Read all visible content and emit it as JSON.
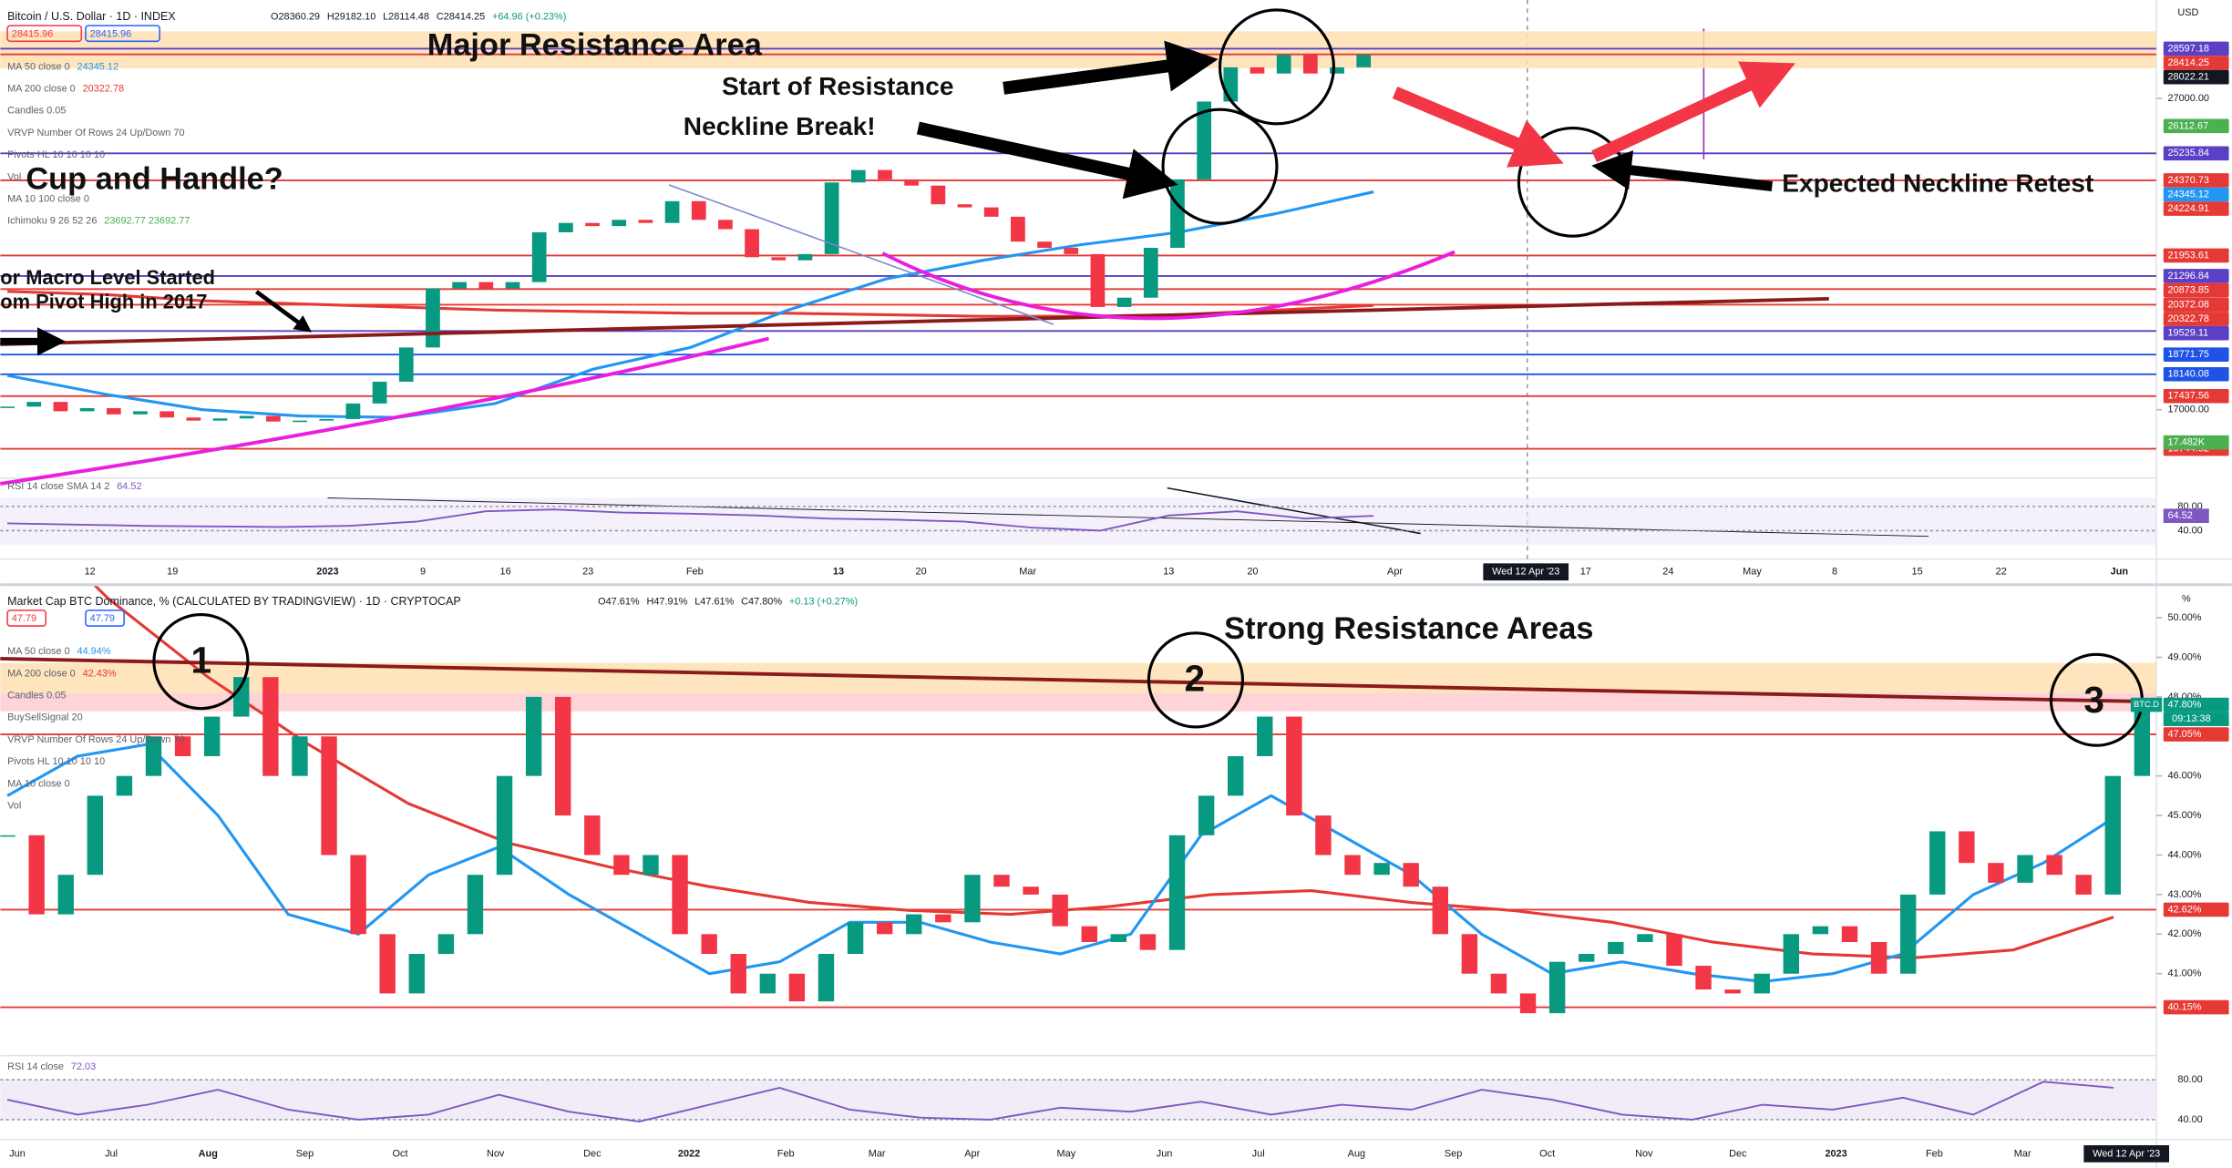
{
  "top": {
    "title": "Bitcoin / U.S. Dollar · 1D · INDEX",
    "ohlc": [
      "O28360.29",
      "H29182.10",
      "L28114.48",
      "C28414.25",
      "+64.96 (+0.23%)"
    ],
    "price_boxes": [
      "28415.96",
      "28415.96"
    ],
    "currency": "USD",
    "indicators": [
      {
        "name": "MA 50 close 0",
        "value": "24345.12"
      },
      {
        "name": "MA 200 close 0",
        "value": "20322.78"
      },
      {
        "name": "Candles 0.05"
      },
      {
        "name": "VRVP Number Of Rows 24 Up/Down 70"
      },
      {
        "name": "Pivots HL 10 10 10 10"
      },
      {
        "name": "Vol"
      },
      {
        "name": "MA 10 100 close 0"
      },
      {
        "name": "Ichimoku 9 26 52 26",
        "value": "23692.77 23692.77"
      }
    ],
    "ylim": [
      15080,
      29797
    ],
    "yticks": [
      {
        "value": 27000,
        "label": "27000.00"
      },
      {
        "value": 17000,
        "label": "17000.00"
      }
    ],
    "closes": [
      17100,
      17250,
      16950,
      17050,
      16850,
      16950,
      16750,
      16650,
      16720,
      16800,
      16620,
      16650,
      16700,
      17200,
      17900,
      19000,
      20900,
      21100,
      20900,
      21100,
      22700,
      23000,
      22900,
      23100,
      23000,
      23700,
      23100,
      22800,
      21900,
      21800,
      22000,
      24300,
      24700,
      24400,
      24200,
      23600,
      23500,
      23200,
      22400,
      22200,
      22000,
      20300,
      20600,
      22200,
      24400,
      26900,
      28000,
      27800,
      28400,
      27800,
      28000,
      28400
    ],
    "ma50": [
      18100,
      17500,
      17000,
      16800,
      16750,
      17200,
      18300,
      19000,
      20200,
      21200,
      21800,
      22300,
      22700,
      23300,
      24000
    ],
    "ma200": [
      20800,
      20700,
      20500,
      20400,
      20300,
      20200,
      20150,
      20100,
      20100,
      20050,
      20000,
      20000,
      20050,
      20200,
      20350
    ],
    "price_labels": [
      {
        "value": 28597.18,
        "color": "#5b3fc4",
        "level": true
      },
      {
        "value": 28414.25,
        "color": "#e53935",
        "level": true
      },
      {
        "value": 28022.21,
        "color": "#131722",
        "level": false
      },
      {
        "value": 26112.67,
        "color": "#4caf50",
        "level": false
      },
      {
        "value": 25235.84,
        "color": "#5b3fc4",
        "level": true
      },
      {
        "value": 24370.73,
        "color": "#e53935",
        "level": true
      },
      {
        "value": 24345.12,
        "color": "#2196f3",
        "level": false
      },
      {
        "value": 24224.91,
        "color": "#e53935",
        "level": false
      },
      {
        "value": 21953.61,
        "color": "#e53935",
        "level": true
      },
      {
        "value": 21296.84,
        "color": "#5b3fc4",
        "level": true
      },
      {
        "value": 20873.85,
        "color": "#e53935",
        "level": true
      },
      {
        "value": 20372.08,
        "color": "#e53935",
        "level": true
      },
      {
        "value": 20322.78,
        "color": "#e53935",
        "level": false
      },
      {
        "value": 19529.11,
        "color": "#5b3fc4",
        "level": true
      },
      {
        "value": 18771.75,
        "color": "#1e53e5",
        "level": true
      },
      {
        "value": 18140.08,
        "color": "#1e53e5",
        "level": true
      },
      {
        "value": 17437.56,
        "color": "#e53935",
        "level": true
      },
      {
        "value": 15744.92,
        "color": "#e53935",
        "level": true
      }
    ],
    "volume_label": "17.482K",
    "x_labels": [
      "12",
      "19",
      "2023",
      "9",
      "16",
      "23",
      "Feb",
      "13",
      "20",
      "Mar",
      "13",
      "20",
      "Apr",
      "17",
      "24",
      "May",
      "8",
      "15",
      "22",
      "Jun"
    ],
    "date_badge": "Wed 12 Apr '23",
    "rsi": {
      "name": "RSI 14 close SMA 14 2",
      "value": 64.52,
      "ylim": [
        20,
        100
      ],
      "yticks": [
        {
          "value": 80,
          "label": "80.00"
        },
        {
          "value": 40,
          "label": "40.00"
        }
      ],
      "values": [
        52,
        50,
        48,
        47,
        46,
        48,
        55,
        72,
        75,
        70,
        68,
        65,
        60,
        58,
        55,
        45,
        40,
        65,
        72,
        60,
        64.52
      ]
    }
  },
  "annotations": {
    "major_resistance": "Major Resistance Area",
    "start_resistance": "Start of Resistance",
    "neckline_break": "Neckline Break!",
    "cup_handle": "Cup and Handle?",
    "expected_retest": "Expected Neckline Retest",
    "macro_1": "or Macro Level Started",
    "macro_2": "om Pivot High in 2017",
    "strong_resistance": "Strong Resistance Areas",
    "n1": "1",
    "n2": "2",
    "n3": "3"
  },
  "bottom": {
    "title": "Market Cap BTC Dominance, % (CALCULATED BY TRADINGVIEW) · 1D · CRYPTOCAP",
    "ohlc": [
      "O47.61%",
      "H47.91%",
      "L47.61%",
      "C47.80%",
      "+0.13 (+0.27%)"
    ],
    "price_boxes": [
      "47.79",
      "47.79"
    ],
    "unit": "%",
    "indicators": [
      {
        "name": "MA 50 close 0",
        "value": "44.94%"
      },
      {
        "name": "MA 200 close 0",
        "value": "42.43%"
      },
      {
        "name": "Candles 0.05"
      },
      {
        "name": "BuySellSignal 20"
      },
      {
        "name": "VRVP Number Of Rows 24 Up/Down 70"
      },
      {
        "name": "Pivots HL 10 10 10 10"
      },
      {
        "name": "MA 10 close 0"
      },
      {
        "name": "Vol"
      }
    ],
    "ylim": [
      39,
      50.8
    ],
    "yticks": [
      {
        "value": 50,
        "label": "50.00%"
      },
      {
        "value": 49,
        "label": "49.00%"
      },
      {
        "value": 48,
        "label": "48.00%"
      },
      {
        "value": 46,
        "label": "46.00%"
      },
      {
        "value": 45,
        "label": "45.00%"
      },
      {
        "value": 44,
        "label": "44.00%"
      },
      {
        "value": 43,
        "label": "43.00%"
      },
      {
        "value": 42,
        "label": "42.00%"
      },
      {
        "value": 41,
        "label": "41.00%"
      }
    ],
    "closes": [
      44.5,
      42.5,
      43.5,
      45.5,
      46,
      47,
      46.5,
      47.5,
      48.5,
      46,
      47,
      44,
      42,
      40.5,
      41.5,
      42,
      43.5,
      46,
      48,
      45,
      44,
      43.5,
      44,
      42,
      41.5,
      40.5,
      41,
      40.3,
      41.5,
      42.3,
      42,
      42.5,
      42.3,
      43.5,
      43.2,
      43,
      42.2,
      41.8,
      42,
      41.6,
      44.5,
      45.5,
      46.5,
      47.5,
      45,
      44,
      43.5,
      43.8,
      43.2,
      42,
      41,
      40.5,
      40,
      41.3,
      41.5,
      41.8,
      42,
      41.2,
      40.6,
      40.5,
      41,
      42,
      42.2,
      41.8,
      41,
      43,
      44.6,
      43.8,
      43.3,
      44,
      43.5,
      43,
      46,
      47.8
    ],
    "ma50": [
      45.5,
      46.5,
      46.8,
      45,
      42.5,
      42,
      43.5,
      44.2,
      43,
      42,
      41,
      41.3,
      42.3,
      42.3,
      41.8,
      41.5,
      42,
      44.5,
      45.5,
      44.5,
      43.5,
      42,
      41,
      41.3,
      41,
      40.8,
      41,
      41.5,
      43,
      43.8,
      44.94
    ],
    "ma200": [
      53,
      50.5,
      48.5,
      46.8,
      45.3,
      44.3,
      43.7,
      43.2,
      42.8,
      42.6,
      42.5,
      42.7,
      43,
      43.1,
      42.8,
      42.6,
      42.3,
      41.8,
      41.5,
      41.4,
      41.6,
      42.43
    ],
    "price_labels": [
      {
        "value": 47.8,
        "label": "47.80%",
        "color": "#089981",
        "level": false,
        "tag": "BTC.D",
        "timer": "09:13:38"
      },
      {
        "value": 47.05,
        "label": "47.05%",
        "color": "#e53935",
        "level": true
      },
      {
        "value": 42.62,
        "label": "42.62%",
        "color": "#e53935",
        "level": true
      },
      {
        "value": 40.15,
        "label": "40.15%",
        "color": "#e53935",
        "level": true
      }
    ],
    "x_labels": [
      "Jun",
      "Jul",
      "Aug",
      "Sep",
      "Oct",
      "Nov",
      "Dec",
      "2022",
      "Feb",
      "Mar",
      "Apr",
      "May",
      "Jun",
      "Jul",
      "Aug",
      "Sep",
      "Oct",
      "Nov",
      "Dec",
      "2023",
      "Feb",
      "Mar"
    ],
    "date_badge": "Wed 12 Apr '23",
    "rsi": {
      "name": "RSI 14 close",
      "value": "72.03",
      "ylim": [
        20,
        100
      ],
      "yticks": [
        {
          "value": 80,
          "label": "80.00"
        },
        {
          "value": 40,
          "label": "40.00"
        }
      ],
      "values": [
        60,
        45,
        55,
        70,
        50,
        40,
        45,
        65,
        48,
        38,
        55,
        72,
        50,
        42,
        40,
        52,
        48,
        58,
        45,
        55,
        50,
        70,
        60,
        45,
        40,
        55,
        50,
        62,
        45,
        78,
        72.03
      ]
    }
  }
}
